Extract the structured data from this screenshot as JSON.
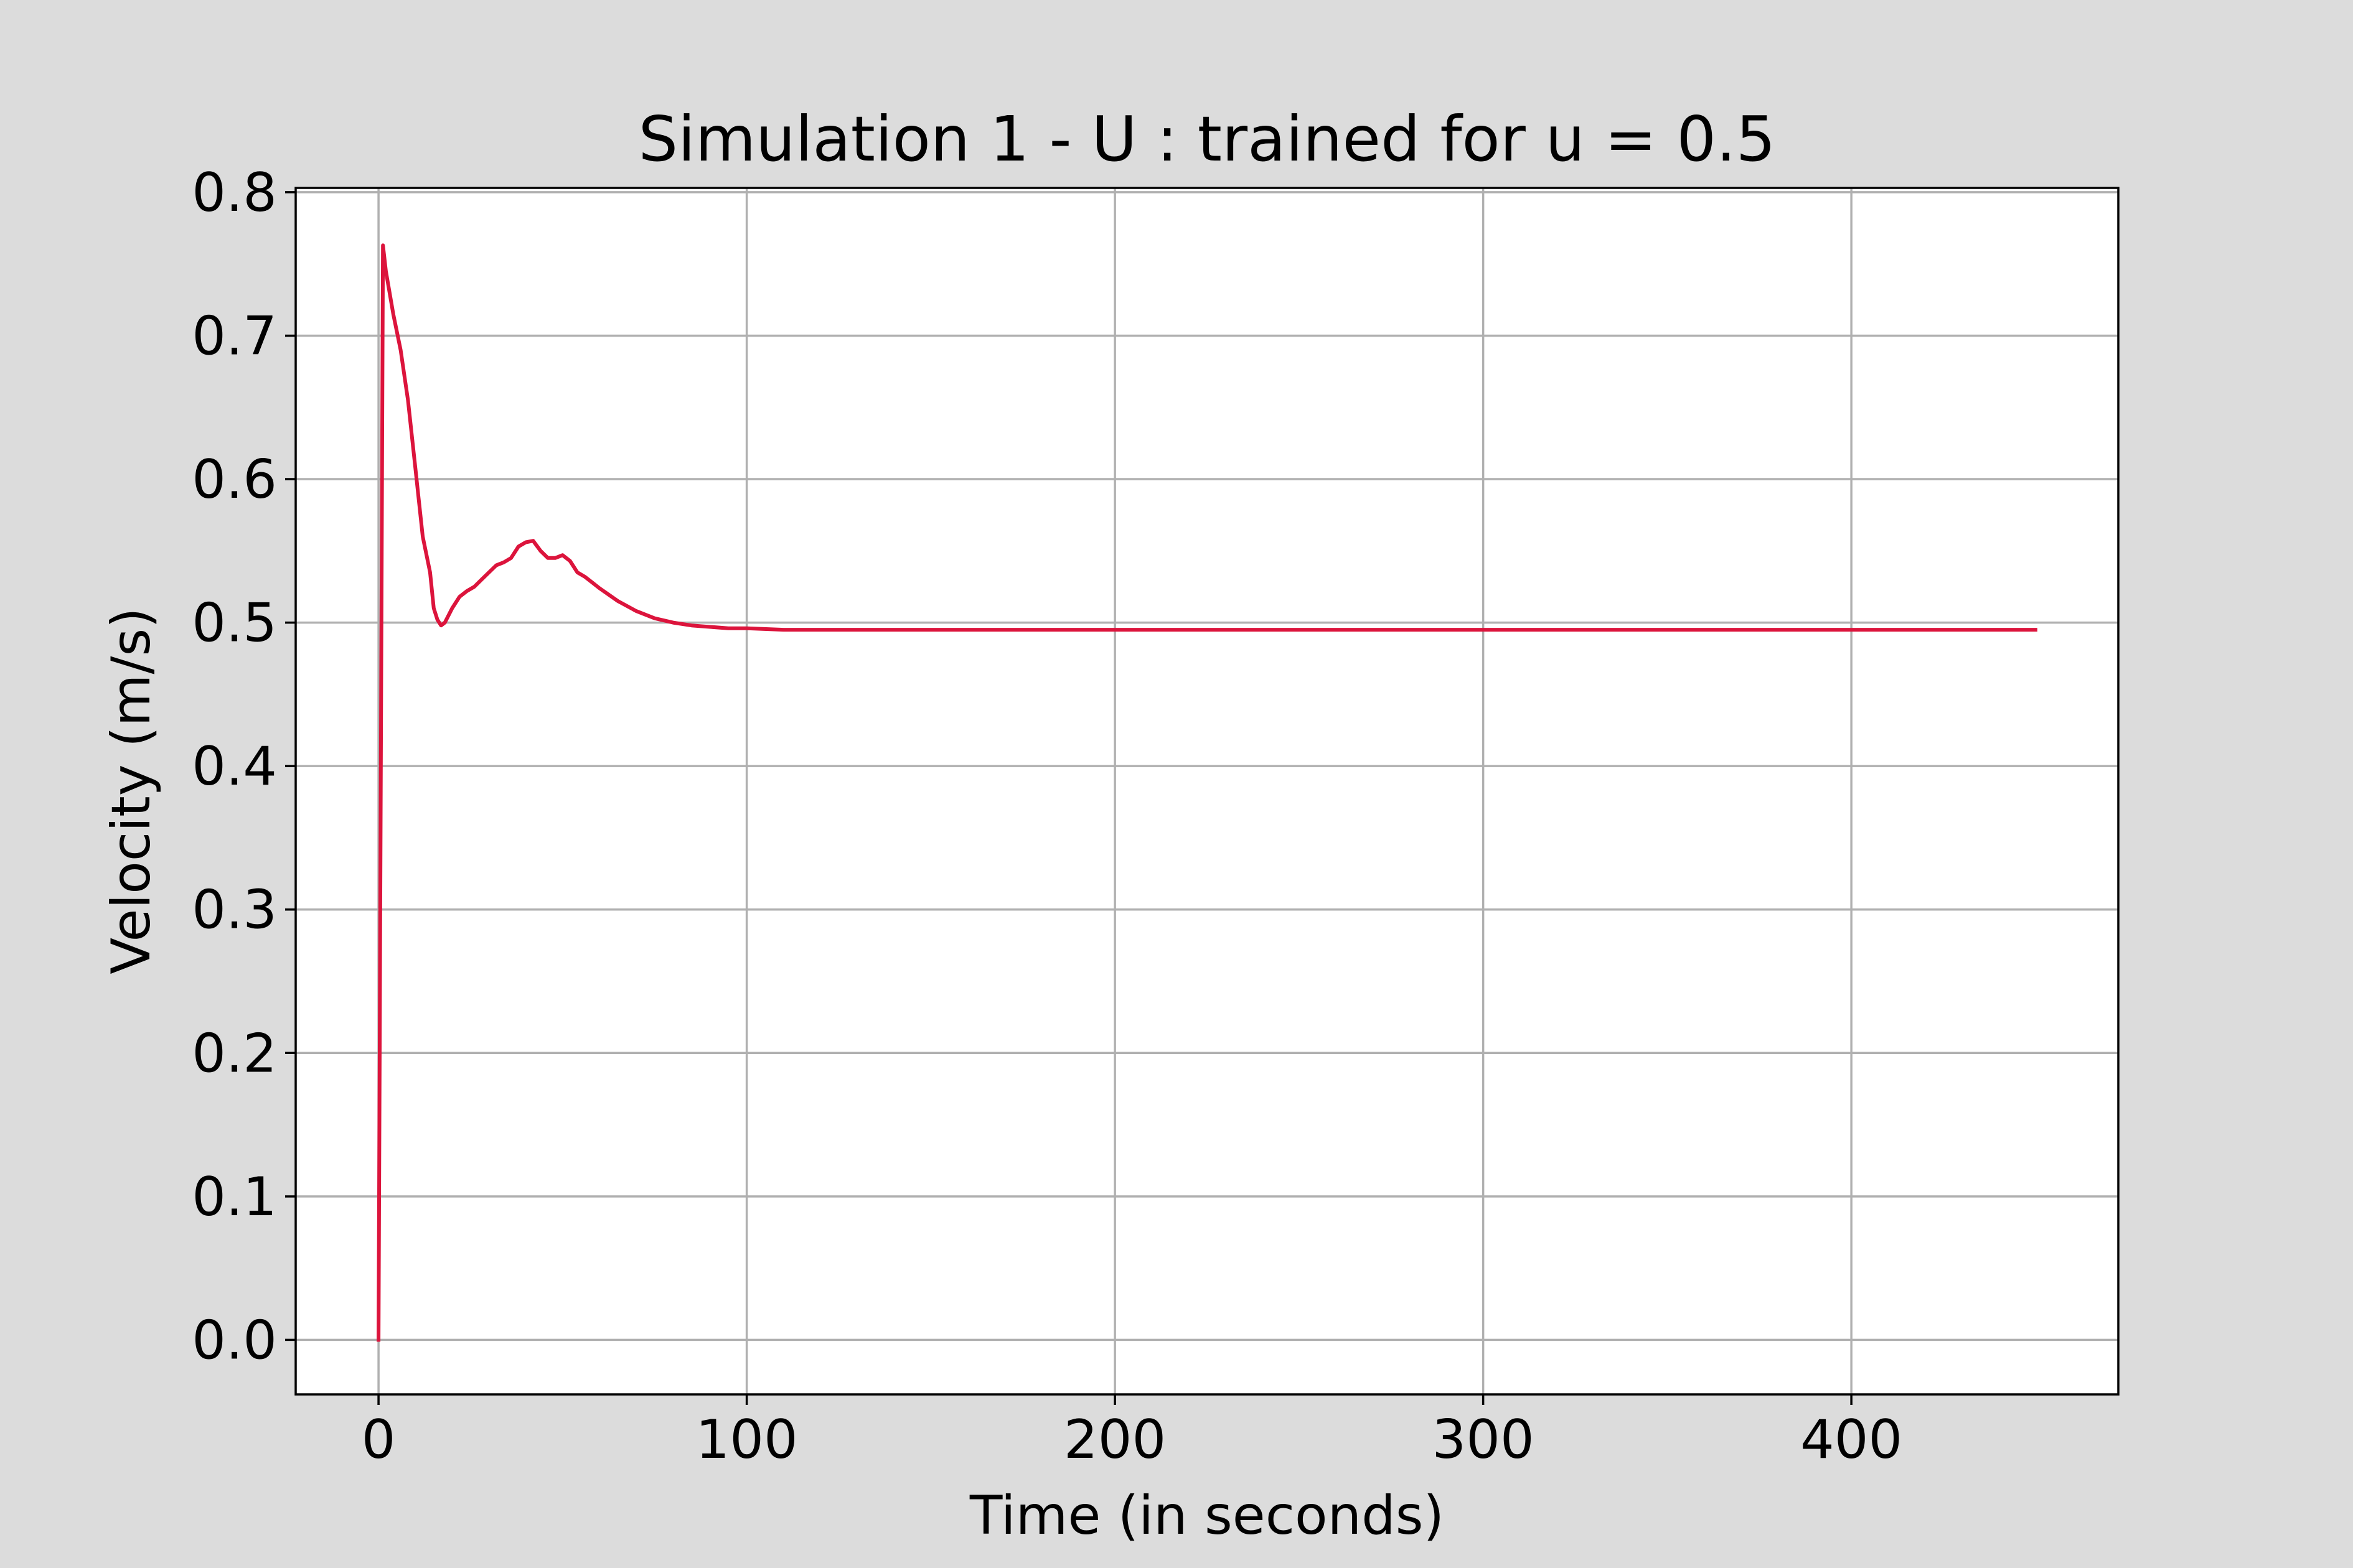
{
  "chart_data": {
    "type": "line",
    "title": "Simulation 1 - U : trained for u = 0.5",
    "xlabel": "Time (in seconds)",
    "ylabel": "Velocity (m/s)",
    "xlim": [
      -22.5,
      472.5
    ],
    "ylim": [
      -0.038,
      0.803
    ],
    "xticks": [
      0,
      100,
      200,
      300,
      400
    ],
    "yticks": [
      0.0,
      0.1,
      0.2,
      0.3,
      0.4,
      0.5,
      0.6,
      0.7,
      0.8
    ],
    "xtick_labels": [
      "0",
      "100",
      "200",
      "300",
      "400"
    ],
    "ytick_labels": [
      "0.0",
      "0.1",
      "0.2",
      "0.3",
      "0.4",
      "0.5",
      "0.6",
      "0.7",
      "0.8"
    ],
    "grid": true,
    "series": [
      {
        "color": "#dc143c",
        "x": [
          0,
          1.2,
          2,
          4,
          6,
          8,
          10,
          12,
          14,
          15,
          16,
          17,
          18,
          19,
          20,
          22,
          24,
          26,
          28,
          30,
          32,
          34,
          36,
          38,
          40,
          42,
          44,
          46,
          48,
          50,
          52,
          54,
          56,
          58,
          60,
          65,
          70,
          75,
          80,
          85,
          90,
          95,
          100,
          110,
          120,
          150,
          200,
          250,
          300,
          350,
          400,
          450
        ],
        "y": [
          0.0,
          0.763,
          0.745,
          0.715,
          0.69,
          0.655,
          0.608,
          0.56,
          0.535,
          0.51,
          0.502,
          0.498,
          0.5,
          0.505,
          0.51,
          0.518,
          0.522,
          0.525,
          0.53,
          0.535,
          0.54,
          0.542,
          0.545,
          0.553,
          0.556,
          0.557,
          0.55,
          0.545,
          0.545,
          0.547,
          0.543,
          0.535,
          0.532,
          0.528,
          0.524,
          0.515,
          0.508,
          0.503,
          0.5,
          0.498,
          0.497,
          0.496,
          0.496,
          0.495,
          0.495,
          0.495,
          0.495,
          0.495,
          0.495,
          0.495,
          0.495,
          0.495
        ]
      }
    ]
  }
}
